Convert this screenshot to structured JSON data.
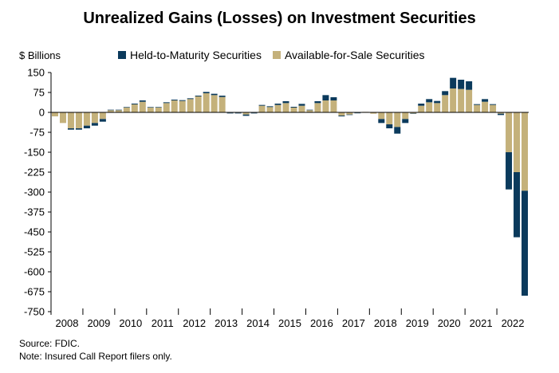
{
  "title": "Unrealized Gains (Losses) on Investment Securities",
  "y_unit": "$ Billions",
  "legend": [
    {
      "label": "Held-to-Maturity Securities",
      "color": "#0b3a5c"
    },
    {
      "label": "Available-for-Sale Securities",
      "color": "#c4b17b"
    }
  ],
  "footnotes": {
    "source": "Source: FDIC.",
    "note": "Note: Insured Call Report filers only."
  },
  "chart_data": {
    "type": "bar",
    "stacked": true,
    "title": "Unrealized Gains (Losses) on Investment Securities",
    "ylabel": "$ Billions",
    "ylim": [
      -750,
      150
    ],
    "yticks": [
      150,
      75,
      0,
      -75,
      -150,
      -225,
      -300,
      -375,
      -450,
      -525,
      -600,
      -675,
      -750
    ],
    "year_labels": [
      "2008",
      "2009",
      "2010",
      "2011",
      "2012",
      "2013",
      "2014",
      "2015",
      "2016",
      "2017",
      "2018",
      "2019",
      "2020",
      "2021",
      "2022"
    ],
    "bars_per_year": 4,
    "legend_position": "top",
    "categories": [
      "2008Q1",
      "2008Q2",
      "2008Q3",
      "2008Q4",
      "2009Q1",
      "2009Q2",
      "2009Q3",
      "2009Q4",
      "2010Q1",
      "2010Q2",
      "2010Q3",
      "2010Q4",
      "2011Q1",
      "2011Q2",
      "2011Q3",
      "2011Q4",
      "2012Q1",
      "2012Q2",
      "2012Q3",
      "2012Q4",
      "2013Q1",
      "2013Q2",
      "2013Q3",
      "2013Q4",
      "2014Q1",
      "2014Q2",
      "2014Q3",
      "2014Q4",
      "2015Q1",
      "2015Q2",
      "2015Q3",
      "2015Q4",
      "2016Q1",
      "2016Q2",
      "2016Q3",
      "2016Q4",
      "2017Q1",
      "2017Q2",
      "2017Q3",
      "2017Q4",
      "2018Q1",
      "2018Q2",
      "2018Q3",
      "2018Q4",
      "2019Q1",
      "2019Q2",
      "2019Q3",
      "2019Q4",
      "2020Q1",
      "2020Q2",
      "2020Q3",
      "2020Q4",
      "2021Q1",
      "2021Q2",
      "2021Q3",
      "2021Q4",
      "2022Q1",
      "2022Q2",
      "2022Q3",
      "2022Q4"
    ],
    "series": [
      {
        "name": "Available-for-Sale Securities",
        "color": "#c4b17b",
        "values": [
          -15,
          -40,
          -60,
          -60,
          -50,
          -40,
          -25,
          8,
          8,
          18,
          30,
          40,
          18,
          18,
          35,
          45,
          43,
          50,
          60,
          72,
          65,
          58,
          -2,
          -2,
          -8,
          -2,
          25,
          20,
          28,
          35,
          18,
          25,
          8,
          35,
          45,
          45,
          -12,
          -8,
          -2,
          2,
          -5,
          -25,
          -45,
          -55,
          -25,
          -4,
          25,
          38,
          35,
          65,
          90,
          88,
          85,
          28,
          40,
          28,
          -5,
          -150,
          -225,
          -295
        ]
      },
      {
        "name": "Held-to-Maturity Securities",
        "color": "#0b3a5c",
        "values": [
          0,
          0,
          -5,
          -5,
          -10,
          -10,
          -10,
          2,
          2,
          2,
          3,
          5,
          2,
          2,
          3,
          3,
          3,
          3,
          3,
          5,
          5,
          5,
          -2,
          -2,
          -5,
          -2,
          3,
          3,
          5,
          7,
          3,
          7,
          2,
          7,
          20,
          12,
          -3,
          -2,
          -1,
          0,
          0,
          -15,
          -15,
          -25,
          -15,
          -1,
          8,
          12,
          8,
          15,
          40,
          35,
          32,
          3,
          10,
          3,
          -5,
          -140,
          -245,
          -395
        ]
      }
    ]
  }
}
